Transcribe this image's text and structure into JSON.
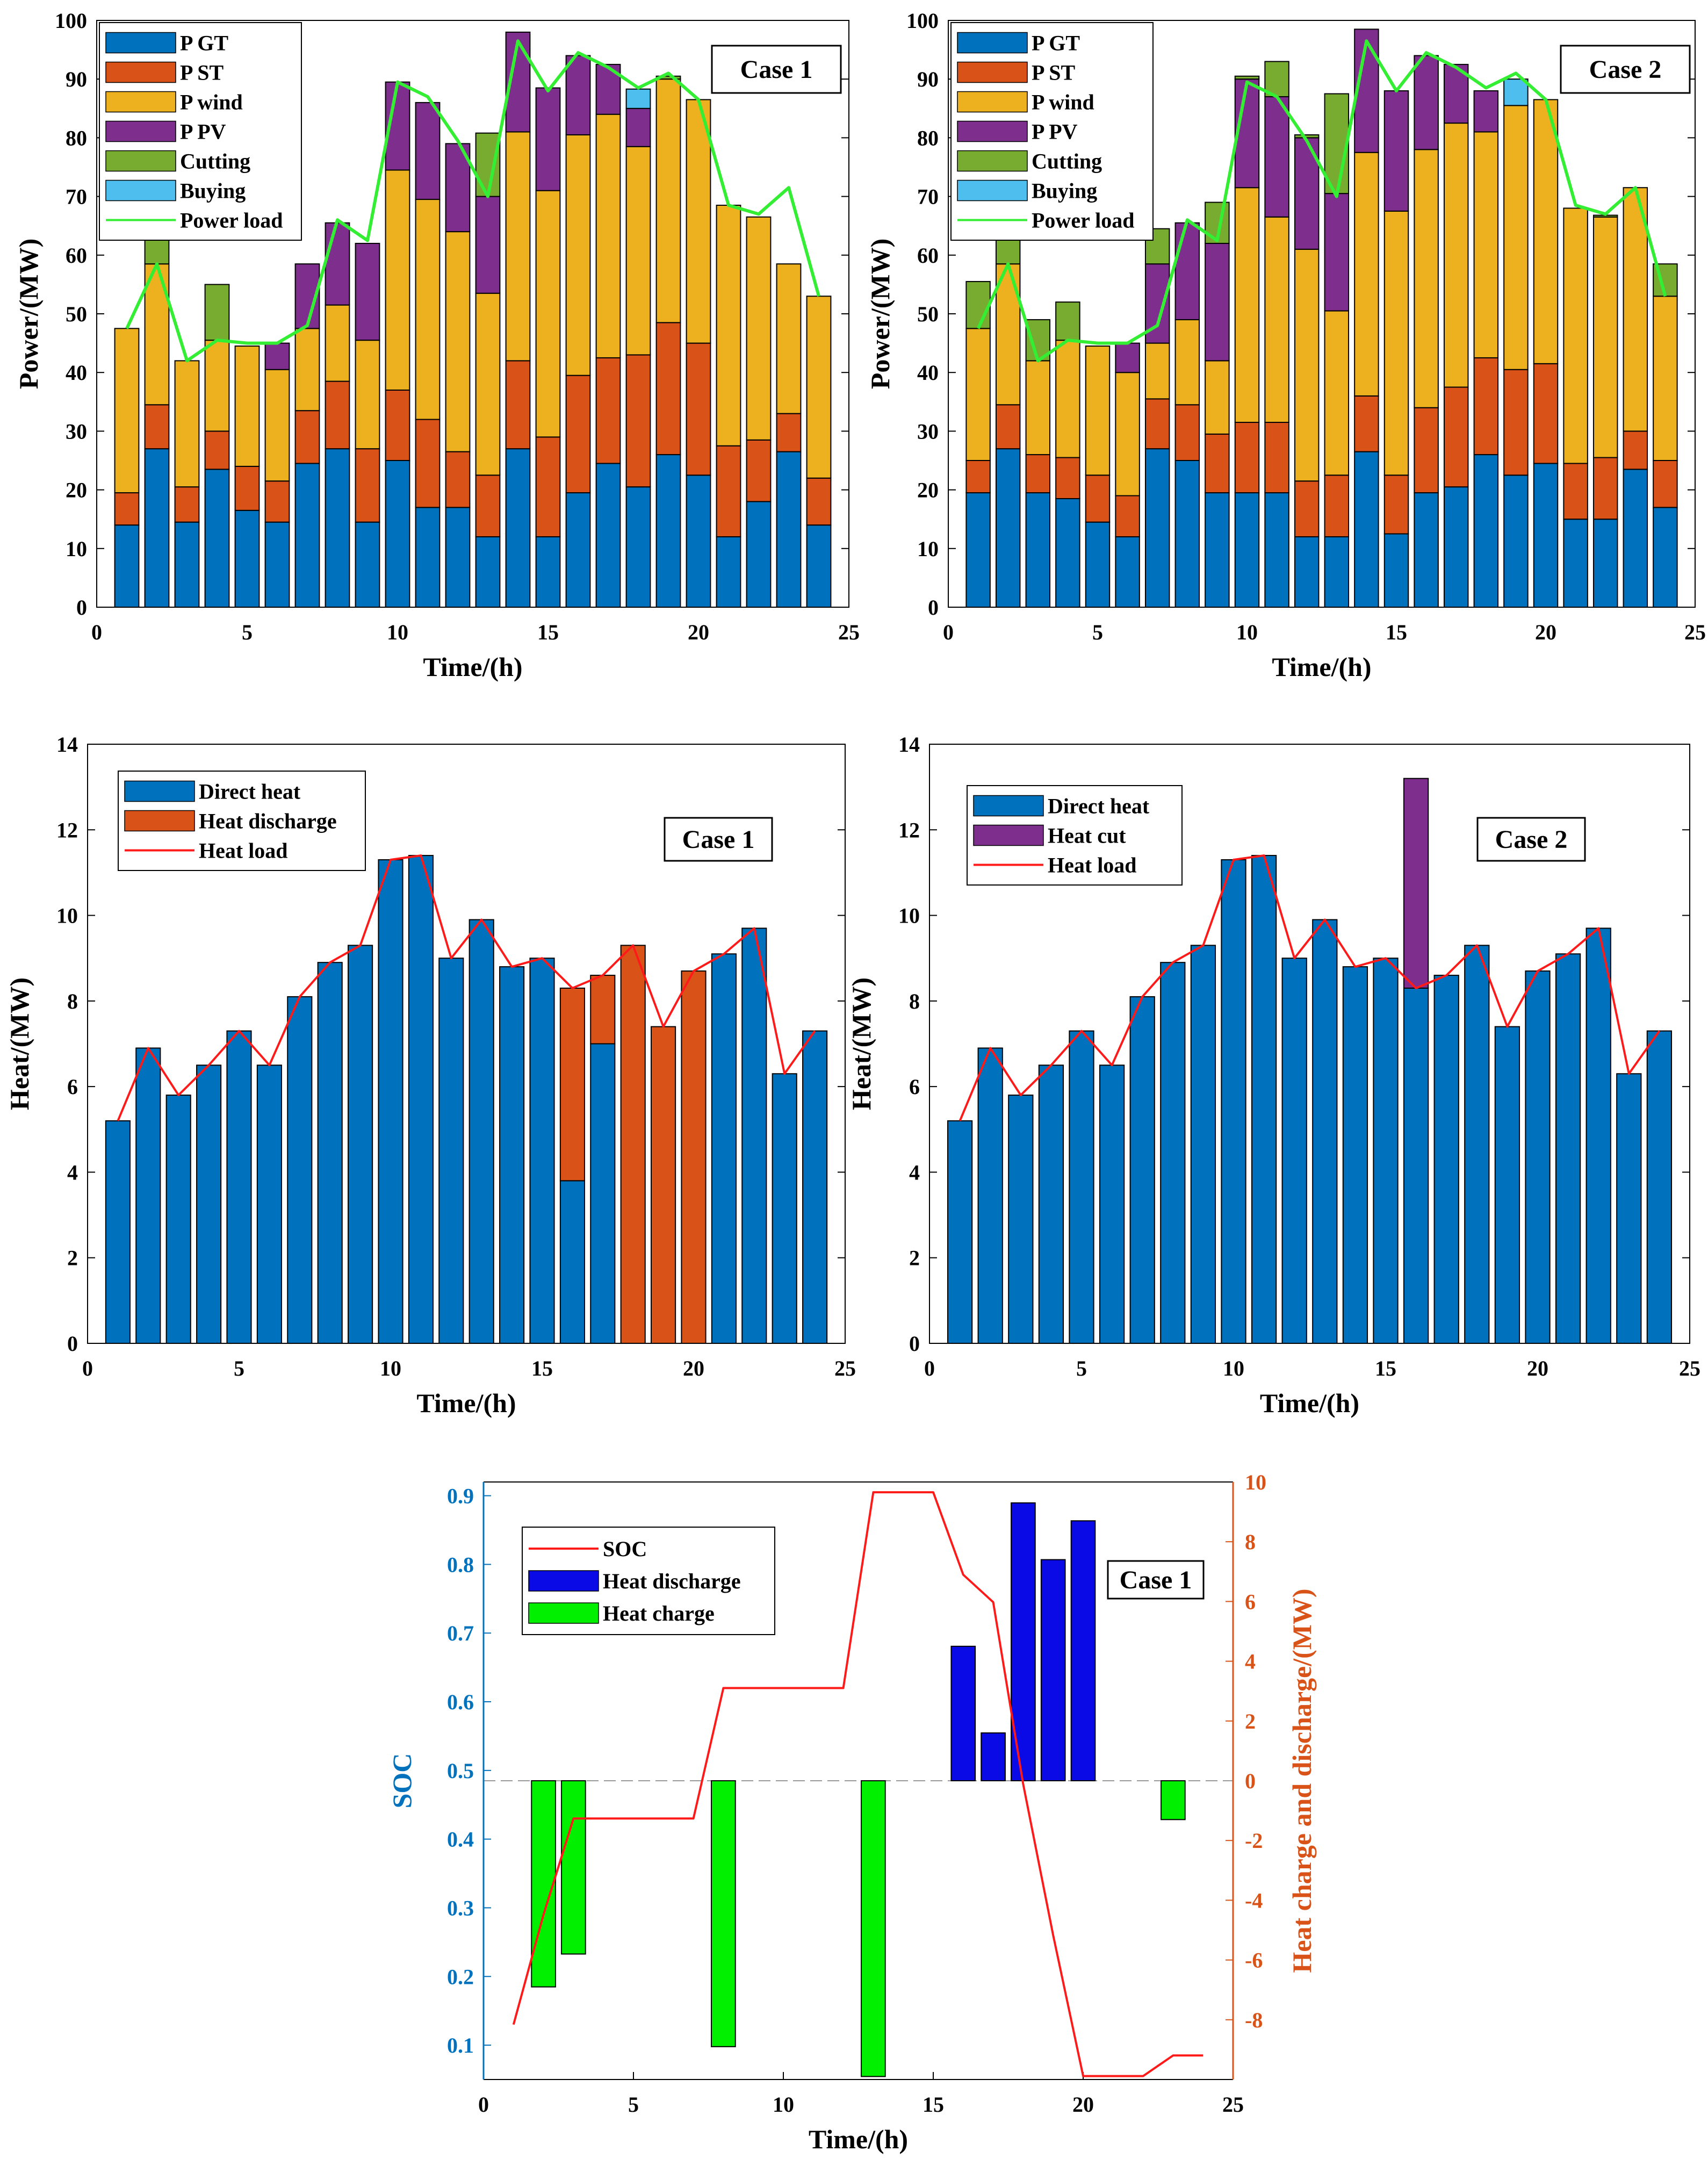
{
  "colors": {
    "gt": "#0072BD",
    "st": "#D95319",
    "wind": "#EDB120",
    "pv": "#7E2F8E",
    "cut": "#77AC30",
    "buy": "#4DBEEE",
    "power_load": "#33EE33",
    "heat_load": "#FF1A1A",
    "soc": "#FF1A1A",
    "discharge_bar": "#0A0AE6",
    "charge_bar": "#00F000",
    "soc_axis": "#0072BD",
    "right_axis": "#D95319"
  },
  "chart_data": [
    {
      "id": "power-case1",
      "type": "bar",
      "stacked": true,
      "title": "Case 1",
      "xlabel": "Time/(h)",
      "ylabel": "Power/(MW)",
      "xlim": [
        0,
        25
      ],
      "ylim": [
        0,
        100
      ],
      "xticks": [
        0,
        5,
        10,
        15,
        20,
        25
      ],
      "yticks": [
        0,
        10,
        20,
        30,
        40,
        50,
        60,
        70,
        80,
        90,
        100
      ],
      "legend_position": "top-left",
      "x": [
        1,
        2,
        3,
        4,
        5,
        6,
        7,
        8,
        9,
        10,
        11,
        12,
        13,
        14,
        15,
        16,
        17,
        18,
        19,
        20,
        21,
        22,
        23,
        24
      ],
      "series": [
        {
          "name": "P GT",
          "color_key": "gt",
          "values": [
            14,
            27,
            14.5,
            23.5,
            16.5,
            14.5,
            24.5,
            27,
            14.5,
            25,
            17,
            17,
            12,
            27,
            12,
            19.5,
            24.5,
            20.5,
            26,
            22.5,
            12,
            18,
            26.5,
            14
          ]
        },
        {
          "name": "P ST",
          "color_key": "st",
          "values": [
            5.5,
            7.5,
            6,
            6.5,
            7.5,
            7,
            9,
            11.5,
            12.5,
            12,
            15,
            9.5,
            10.5,
            15,
            17,
            20,
            18,
            22.5,
            22.5,
            22.5,
            15.5,
            10.5,
            6.5,
            8
          ]
        },
        {
          "name": "P wind",
          "color_key": "wind",
          "values": [
            28,
            24,
            21.5,
            15.5,
            20.5,
            19,
            14,
            13,
            18.5,
            37.5,
            37.5,
            37.5,
            31,
            39,
            42,
            41,
            41.5,
            35.5,
            41.5,
            41.5,
            41,
            38,
            25.5,
            31
          ]
        },
        {
          "name": "P PV",
          "color_key": "pv",
          "values": [
            0,
            0,
            0,
            0,
            0,
            4.5,
            11,
            14,
            16.5,
            15,
            16.5,
            15,
            16.5,
            17,
            17.5,
            13.5,
            8.5,
            6.5,
            0,
            0,
            0,
            0,
            0,
            0
          ]
        },
        {
          "name": "Cutting",
          "color_key": "cut",
          "values": [
            0,
            4.2,
            0,
            9.5,
            0,
            0,
            0,
            0,
            0,
            0,
            0,
            0,
            10.8,
            0,
            0,
            0,
            0,
            0,
            0.5,
            0,
            0,
            0,
            0,
            0
          ]
        },
        {
          "name": "Buying",
          "color_key": "buy",
          "values": [
            0,
            0,
            0,
            0,
            0,
            0,
            0,
            0,
            0,
            0,
            0,
            0,
            0,
            0,
            0,
            0,
            0,
            3.3,
            0,
            0,
            0,
            0,
            0,
            0
          ]
        }
      ],
      "line": {
        "name": "Power load",
        "color_key": "power_load",
        "values": [
          47.5,
          58.5,
          42,
          45.5,
          45,
          45,
          48,
          66,
          62.5,
          89.5,
          87,
          79.5,
          70,
          96.5,
          88,
          94.5,
          92,
          88.5,
          91,
          86.5,
          68.5,
          67,
          71.5,
          53
        ]
      }
    },
    {
      "id": "power-case2",
      "type": "bar",
      "stacked": true,
      "title": "Case 2",
      "xlabel": "Time/(h)",
      "ylabel": "Power/(MW)",
      "xlim": [
        0,
        25
      ],
      "ylim": [
        0,
        100
      ],
      "xticks": [
        0,
        5,
        10,
        15,
        20,
        25
      ],
      "yticks": [
        0,
        10,
        20,
        30,
        40,
        50,
        60,
        70,
        80,
        90,
        100
      ],
      "legend_position": "top-left",
      "x": [
        1,
        2,
        3,
        4,
        5,
        6,
        7,
        8,
        9,
        10,
        11,
        12,
        13,
        14,
        15,
        16,
        17,
        18,
        19,
        20,
        21,
        22,
        23,
        24
      ],
      "series": [
        {
          "name": "P GT",
          "color_key": "gt",
          "values": [
            19.5,
            27,
            19.5,
            18.5,
            14.5,
            12,
            27,
            25,
            19.5,
            19.5,
            19.5,
            12,
            12,
            26.5,
            12.5,
            19.5,
            20.5,
            26,
            22.5,
            24.5,
            15,
            15,
            23.5,
            17
          ]
        },
        {
          "name": "P ST",
          "color_key": "st",
          "values": [
            5.5,
            7.5,
            6.5,
            7,
            8,
            7,
            8.5,
            9.5,
            10,
            12,
            12,
            9.5,
            10.5,
            9.5,
            10,
            14.5,
            17,
            16.5,
            18,
            17,
            9.5,
            10.5,
            6.5,
            8
          ]
        },
        {
          "name": "P wind",
          "color_key": "wind",
          "values": [
            22.5,
            24,
            16,
            20,
            22,
            21,
            9.5,
            14.5,
            12.5,
            40,
            35,
            39.5,
            28,
            41.5,
            45,
            44,
            45,
            38.5,
            45,
            45,
            43.5,
            41,
            41.5,
            28
          ]
        },
        {
          "name": "P PV",
          "color_key": "pv",
          "values": [
            0,
            0,
            0,
            0,
            0,
            5,
            13.5,
            16.5,
            20,
            18.5,
            20.5,
            19,
            20,
            21,
            20.5,
            16,
            10,
            7,
            0,
            0,
            0,
            0,
            0,
            0
          ]
        },
        {
          "name": "Cutting",
          "color_key": "cut",
          "values": [
            8,
            6.5,
            7,
            6.5,
            0,
            0,
            6,
            0,
            7,
            0.5,
            6,
            0.5,
            17,
            0,
            0,
            0,
            0,
            0,
            0,
            0,
            0,
            0.3,
            0,
            5.5
          ]
        },
        {
          "name": "Buying",
          "color_key": "buy",
          "values": [
            0,
            0,
            0,
            0,
            0,
            0,
            0,
            0,
            0,
            0,
            0,
            0,
            0,
            0,
            0,
            0,
            0,
            0,
            4.5,
            0,
            0,
            0,
            0,
            0
          ]
        }
      ],
      "line": {
        "name": "Power load",
        "color_key": "power_load",
        "values": [
          47.5,
          58.5,
          42,
          45.5,
          45,
          45,
          48,
          66,
          62.5,
          89.5,
          87,
          79.5,
          70,
          96.5,
          88,
          94.5,
          92,
          88.5,
          91,
          86.5,
          68.5,
          67,
          71.5,
          53
        ]
      }
    },
    {
      "id": "heat-case1",
      "type": "bar",
      "stacked": true,
      "title": "Case 1",
      "xlabel": "Time/(h)",
      "ylabel": "Heat/(MW)",
      "xlim": [
        0,
        25
      ],
      "ylim": [
        0,
        14
      ],
      "xticks": [
        0,
        5,
        10,
        15,
        20,
        25
      ],
      "yticks": [
        0,
        2,
        4,
        6,
        8,
        10,
        12,
        14
      ],
      "legend_position": "top-left",
      "x": [
        1,
        2,
        3,
        4,
        5,
        6,
        7,
        8,
        9,
        10,
        11,
        12,
        13,
        14,
        15,
        16,
        17,
        18,
        19,
        20,
        21,
        22,
        23,
        24
      ],
      "series": [
        {
          "name": "Direct heat",
          "color_key": "gt",
          "values": [
            5.2,
            6.9,
            5.8,
            6.5,
            7.3,
            6.5,
            8.1,
            8.9,
            9.3,
            11.3,
            11.4,
            9.0,
            9.9,
            8.8,
            9.0,
            3.8,
            7.0,
            0,
            0,
            0,
            9.1,
            9.7,
            6.3,
            7.3
          ]
        },
        {
          "name": "Heat discharge",
          "color_key": "st",
          "values": [
            0,
            0,
            0,
            0,
            0,
            0,
            0,
            0,
            0,
            0,
            0,
            0,
            0,
            0,
            0,
            4.5,
            1.6,
            9.3,
            7.4,
            8.7,
            0,
            0,
            0,
            0
          ]
        }
      ],
      "line": {
        "name": "Heat load",
        "color_key": "heat_load",
        "values": [
          5.2,
          6.9,
          5.8,
          6.5,
          7.3,
          6.5,
          8.1,
          8.9,
          9.3,
          11.3,
          11.4,
          9.0,
          9.9,
          8.8,
          9.0,
          8.3,
          8.6,
          9.3,
          7.4,
          8.7,
          9.1,
          9.7,
          6.3,
          7.3
        ]
      }
    },
    {
      "id": "heat-case2",
      "type": "bar",
      "stacked": true,
      "title": "Case 2",
      "xlabel": "Time/(h)",
      "ylabel": "Heat/(MW)",
      "xlim": [
        0,
        25
      ],
      "ylim": [
        0,
        14
      ],
      "xticks": [
        0,
        5,
        10,
        15,
        20,
        25
      ],
      "yticks": [
        0,
        2,
        4,
        6,
        8,
        10,
        12,
        14
      ],
      "legend_position": "top-left",
      "x": [
        1,
        2,
        3,
        4,
        5,
        6,
        7,
        8,
        9,
        10,
        11,
        12,
        13,
        14,
        15,
        16,
        17,
        18,
        19,
        20,
        21,
        22,
        23,
        24
      ],
      "series": [
        {
          "name": "Direct heat",
          "color_key": "gt",
          "values": [
            5.2,
            6.9,
            5.8,
            6.5,
            7.3,
            6.5,
            8.1,
            8.9,
            9.3,
            11.3,
            11.4,
            9.0,
            9.9,
            8.8,
            9.0,
            8.3,
            8.6,
            9.3,
            7.4,
            8.7,
            9.1,
            9.7,
            6.3,
            7.3
          ]
        },
        {
          "name": "Heat cut",
          "color_key": "pv",
          "values": [
            0,
            0,
            0,
            0,
            0,
            0,
            0,
            0,
            0,
            0,
            0,
            0,
            0,
            0,
            0,
            4.9,
            0,
            0,
            0,
            0,
            0,
            0,
            0,
            0
          ]
        }
      ],
      "line": {
        "name": "Heat load",
        "color_key": "heat_load",
        "values": [
          5.2,
          6.9,
          5.8,
          6.5,
          7.3,
          6.5,
          8.1,
          8.9,
          9.3,
          11.3,
          11.4,
          9.0,
          9.9,
          8.8,
          9.0,
          8.3,
          8.6,
          9.3,
          7.4,
          8.7,
          9.1,
          9.7,
          6.3,
          7.3
        ]
      }
    },
    {
      "id": "soc-case1",
      "type": "bar",
      "title": "Case 1",
      "xlabel": "Time/(h)",
      "ylabel": "SOC",
      "ylabel_right": "Heat charge and discharge/(MW)",
      "xlim": [
        0,
        25
      ],
      "ylim_left": [
        0.05,
        0.92
      ],
      "ylim_right": [
        -10,
        10
      ],
      "xticks": [
        0,
        5,
        10,
        15,
        20,
        25
      ],
      "yticks_left": [
        0.1,
        0.2,
        0.3,
        0.4,
        0.5,
        0.6,
        0.7,
        0.8,
        0.9
      ],
      "yticks_right": [
        -8,
        -6,
        -4,
        -2,
        0,
        2,
        4,
        6,
        8,
        10
      ],
      "legend_position": "top-left",
      "x": [
        1,
        2,
        3,
        4,
        5,
        6,
        7,
        8,
        9,
        10,
        11,
        12,
        13,
        14,
        15,
        16,
        17,
        18,
        19,
        20,
        21,
        22,
        23,
        24
      ],
      "soc": {
        "name": "SOC",
        "color_key": "soc",
        "values": [
          0.13,
          0.29,
          0.43,
          0.43,
          0.43,
          0.43,
          0.43,
          0.62,
          0.62,
          0.62,
          0.62,
          0.62,
          0.905,
          0.905,
          0.905,
          0.785,
          0.745,
          0.48,
          0.26,
          0.055,
          0.055,
          0.055,
          0.085,
          0.085
        ]
      },
      "series": [
        {
          "name": "Heat discharge",
          "color_key": "discharge_bar",
          "values": [
            0,
            0,
            0,
            0,
            0,
            0,
            0,
            0,
            0,
            0,
            0,
            0,
            0,
            0,
            0,
            4.5,
            1.6,
            9.3,
            7.4,
            8.7,
            0,
            0,
            0,
            0
          ]
        },
        {
          "name": "Heat charge",
          "color_key": "charge_bar",
          "values": [
            0,
            -6.9,
            -5.8,
            0,
            0,
            0,
            0,
            -8.9,
            0,
            0,
            0,
            0,
            -9.9,
            0,
            0,
            0,
            0,
            0,
            0,
            0,
            0,
            0,
            -1.3,
            0
          ]
        }
      ]
    }
  ]
}
